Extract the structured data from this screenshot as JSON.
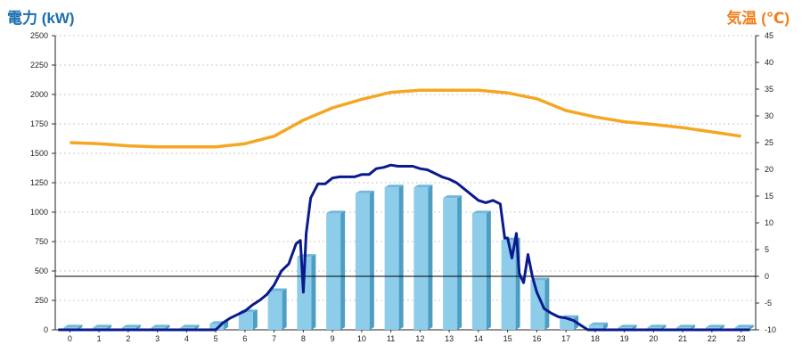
{
  "chart_data": {
    "type": "bar+line",
    "left_axis": {
      "title": "電力 (kW)",
      "ticks": [
        0,
        250,
        500,
        750,
        1000,
        1250,
        1500,
        1750,
        2000,
        2250,
        2500
      ],
      "ylim": [
        0,
        2500
      ]
    },
    "right_axis": {
      "title": "気温 (℃)",
      "ticks": [
        -10,
        -5,
        0,
        5,
        10,
        15,
        20,
        25,
        30,
        35,
        40,
        45
      ],
      "ylim": [
        -10,
        45
      ]
    },
    "categories": [
      "0",
      "1",
      "2",
      "3",
      "4",
      "5",
      "6",
      "7",
      "8",
      "9",
      "10",
      "11",
      "12",
      "13",
      "14",
      "15",
      "16",
      "17",
      "18",
      "19",
      "20",
      "21",
      "22",
      "23"
    ],
    "bars": {
      "axis": "left",
      "color": "#8ecdea",
      "values": [
        20,
        20,
        20,
        20,
        20,
        50,
        150,
        330,
        620,
        990,
        1160,
        1210,
        1210,
        1120,
        990,
        760,
        420,
        100,
        40,
        20,
        20,
        20,
        20,
        20
      ]
    },
    "temperature": {
      "axis": "right",
      "color": "#f5a623",
      "values": [
        25,
        24.8,
        24.4,
        24.2,
        24.2,
        24.2,
        24.8,
        26.2,
        29.2,
        31.5,
        33.1,
        34.4,
        34.8,
        34.8,
        34.8,
        34.3,
        33.2,
        31,
        29.8,
        28.9,
        28.4,
        27.8,
        27,
        26.2
      ]
    },
    "power_line": {
      "axis": "left",
      "color": "#0a1a8c",
      "x": [
        -0.4,
        0,
        0.5,
        1,
        1.5,
        2,
        2.5,
        3,
        3.5,
        4,
        4.5,
        4.8,
        5,
        5.25,
        5.5,
        5.75,
        6,
        6.25,
        6.5,
        6.75,
        7,
        7.25,
        7.5,
        7.75,
        7.9,
        8,
        8.1,
        8.25,
        8.5,
        8.75,
        9,
        9.25,
        9.5,
        9.75,
        10,
        10.25,
        10.5,
        10.75,
        11,
        11.25,
        11.5,
        11.75,
        12,
        12.25,
        12.5,
        12.75,
        13,
        13.25,
        13.5,
        13.75,
        14,
        14.25,
        14.5,
        14.75,
        14.9,
        15,
        15.15,
        15.3,
        15.4,
        15.55,
        15.7,
        15.85,
        16,
        16.25,
        16.5,
        16.75,
        17,
        17.25,
        17.5,
        17.75,
        18,
        18.5,
        19,
        20,
        21,
        22,
        23,
        23.3
      ],
      "values": [
        0,
        0,
        0,
        0,
        0,
        0,
        0,
        0,
        0,
        0,
        0,
        0,
        0,
        60,
        100,
        130,
        160,
        210,
        250,
        300,
        380,
        500,
        560,
        730,
        760,
        320,
        820,
        1120,
        1240,
        1240,
        1290,
        1300,
        1300,
        1300,
        1320,
        1320,
        1370,
        1380,
        1400,
        1390,
        1390,
        1390,
        1370,
        1360,
        1330,
        1300,
        1280,
        1250,
        1200,
        1150,
        1100,
        1080,
        1100,
        1070,
        780,
        780,
        610,
        820,
        480,
        400,
        640,
        450,
        320,
        180,
        140,
        110,
        100,
        80,
        40,
        0,
        0,
        0,
        0,
        0,
        0,
        0,
        0,
        0
      ]
    }
  }
}
